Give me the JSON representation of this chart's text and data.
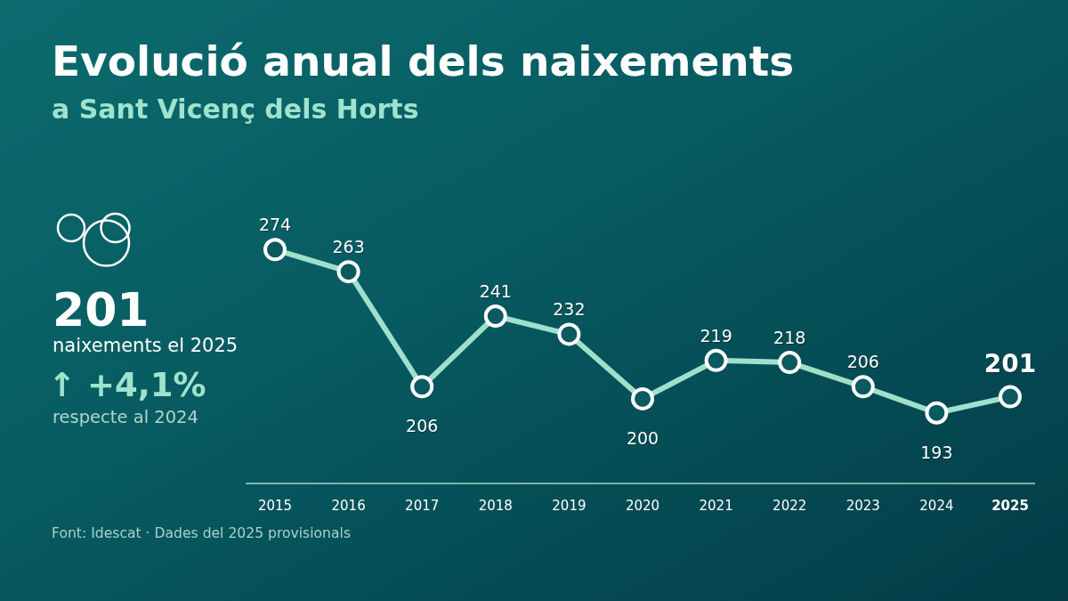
{
  "chart_data": [
    {
      "type": "line",
      "title": "Evolució anual dels naixements",
      "subtitle": "a Sant Vicenç dels Horts",
      "categories": [
        "2015",
        "2016",
        "2017",
        "2018",
        "2019",
        "2020",
        "2021",
        "2022",
        "2023",
        "2024",
        "2025"
      ],
      "values": [
        274,
        263,
        206,
        241,
        232,
        200,
        219,
        218,
        206,
        193,
        201
      ],
      "color": "#9fe0cc",
      "data_labels": true,
      "marker": "circle",
      "line_style": "solid",
      "grid": false,
      "legend": false,
      "tick_labels": "x",
      "annotations": [
        "Font: Idescat · Dades del 2025 provisionals"
      ]
    },
    {
      "type": "other",
      "annotations": [
        "201",
        "naixements el 2025",
        "↑ +4,1%",
        "respecte al 2024"
      ]
    }
  ]
}
